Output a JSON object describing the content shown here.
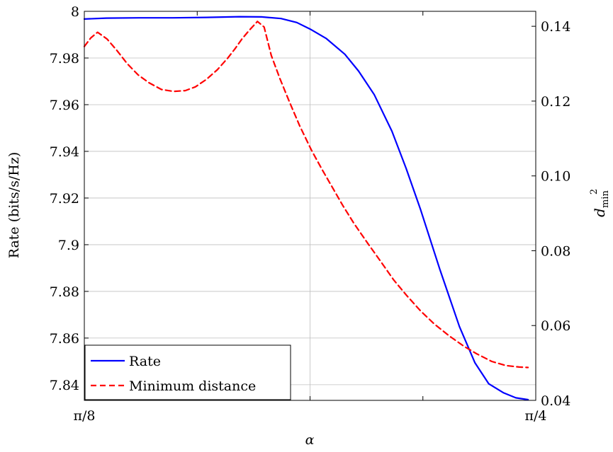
{
  "chart_data": {
    "type": "line",
    "xlabel": "α",
    "ylabel_left": "Rate (bits/s/Hz)",
    "ylabel_right_base": "d",
    "ylabel_right_sup": "2",
    "ylabel_right_sub": "min",
    "xlim": [
      0.392699,
      0.785398
    ],
    "ylim_left": [
      7.8333,
      8.0
    ],
    "ylim_right": [
      0.04,
      0.144
    ],
    "x_ticks": [
      {
        "value": 0.392699,
        "label": "π/8"
      },
      {
        "value": 0.785398,
        "label": "π/4"
      }
    ],
    "x_minor_ticks": [
      0.4909,
      0.589049,
      0.687223
    ],
    "x_grid": [
      0.589049
    ],
    "y_left_ticks": [
      {
        "value": 7.84,
        "label": "7.84"
      },
      {
        "value": 7.86,
        "label": "7.86"
      },
      {
        "value": 7.88,
        "label": "7.88"
      },
      {
        "value": 7.9,
        "label": "7.9"
      },
      {
        "value": 7.92,
        "label": "7.92"
      },
      {
        "value": 7.94,
        "label": "7.94"
      },
      {
        "value": 7.96,
        "label": "7.96"
      },
      {
        "value": 7.98,
        "label": "7.98"
      },
      {
        "value": 8.0,
        "label": "8"
      }
    ],
    "y_right_ticks": [
      {
        "value": 0.04,
        "label": "0.04"
      },
      {
        "value": 0.06,
        "label": "0.06"
      },
      {
        "value": 0.08,
        "label": "0.08"
      },
      {
        "value": 0.1,
        "label": "0.10"
      },
      {
        "value": 0.12,
        "label": "0.12"
      },
      {
        "value": 0.14,
        "label": "0.14"
      }
    ],
    "grid": true,
    "legend_position": "bottom-left",
    "series": [
      {
        "name": "Rate",
        "axis": "left",
        "color": "#0000ff",
        "style": "solid",
        "x": [
          0.3927,
          0.4119,
          0.4405,
          0.4695,
          0.4986,
          0.5276,
          0.5468,
          0.5638,
          0.5775,
          0.5891,
          0.6033,
          0.6193,
          0.6313,
          0.6449,
          0.6603,
          0.6727,
          0.6852,
          0.702,
          0.719,
          0.7325,
          0.7445,
          0.7575,
          0.768,
          0.7787
        ],
        "y": [
          7.9967,
          7.9971,
          7.9972,
          7.9972,
          7.9974,
          7.9977,
          7.9976,
          7.9969,
          7.9952,
          7.9924,
          7.9883,
          7.9816,
          7.9744,
          7.9643,
          7.9486,
          7.9326,
          7.915,
          7.8894,
          7.8649,
          7.8494,
          7.8404,
          7.8365,
          7.8344,
          7.8336
        ]
      },
      {
        "name": "Minimum distance",
        "axis": "right",
        "color": "#ff0000",
        "style": "dashed",
        "x": [
          0.3927,
          0.3984,
          0.4042,
          0.4124,
          0.4209,
          0.43,
          0.4395,
          0.449,
          0.4598,
          0.4704,
          0.4805,
          0.4893,
          0.4989,
          0.5085,
          0.5177,
          0.524,
          0.5298,
          0.5364,
          0.5433,
          0.5491,
          0.5553,
          0.563,
          0.571,
          0.5802,
          0.5904,
          0.5995,
          0.6087,
          0.6175,
          0.6273,
          0.639,
          0.6508,
          0.6618,
          0.6732,
          0.6852,
          0.6972,
          0.7098,
          0.7232,
          0.7343,
          0.7472,
          0.7594,
          0.7711,
          0.7787
        ],
        "y": [
          0.1346,
          0.1369,
          0.1384,
          0.1366,
          0.1336,
          0.13,
          0.127,
          0.1249,
          0.1231,
          0.1226,
          0.1228,
          0.1238,
          0.1258,
          0.1284,
          0.1316,
          0.1341,
          0.1366,
          0.139,
          0.1413,
          0.1398,
          0.1322,
          0.1259,
          0.1199,
          0.1133,
          0.1068,
          0.1017,
          0.0968,
          0.0921,
          0.0873,
          0.0821,
          0.077,
          0.0722,
          0.068,
          0.0639,
          0.0604,
          0.0573,
          0.0544,
          0.0524,
          0.0504,
          0.0493,
          0.0489,
          0.0488
        ]
      }
    ]
  }
}
